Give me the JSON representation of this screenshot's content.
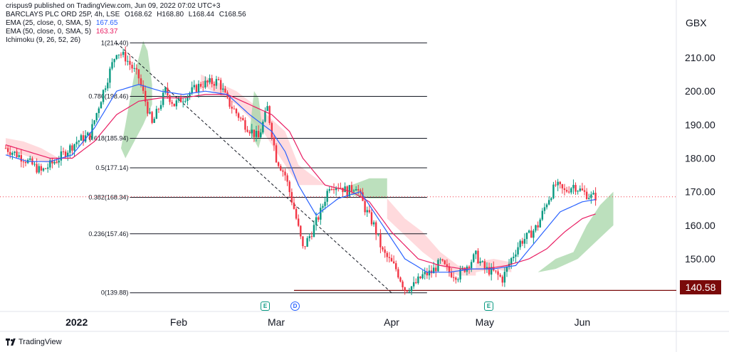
{
  "header": {
    "published": "crispus9 published on TradingView.com, Jun 09, 2022 07:02 UTC+3",
    "symbol_line": "BARCLAYS PLC ORD 25P, 4h, LSE",
    "ohlc": {
      "o": "O168.62",
      "h": "H168.80",
      "l": "L168.44",
      "c": "C168.56"
    },
    "indicators": [
      {
        "label": "EMA (25, close, 0, SMA, 5)",
        "value": "167.65",
        "color": "#2962ff"
      },
      {
        "label": "EMA (50, close, 0, SMA, 5)",
        "value": "163.37",
        "color": "#e91e63"
      },
      {
        "label": "Ichimoku (9, 26, 52, 26)",
        "value": "",
        "color": "#131722"
      }
    ]
  },
  "unit": "GBX",
  "current_price_label": "140.58",
  "footer_brand": "TradingView",
  "events": [
    {
      "letter": "E",
      "kind": "earnings"
    },
    {
      "letter": "D",
      "kind": "dividend"
    },
    {
      "letter": "E",
      "kind": "earnings"
    }
  ],
  "colors": {
    "up": "#089981",
    "down": "#f23645",
    "ema25": "#2962ff",
    "ema50": "#e91e63",
    "cloud_up": "#a5d6a7",
    "cloud_down": "#ffcdd2",
    "fib": "#131722",
    "price_marker": "#7a0a0a"
  },
  "chart_data": {
    "type": "candlestick",
    "timeframe": "4h",
    "ylim": [
      136,
      224
    ],
    "y_ticks": [
      150,
      160,
      170,
      180,
      190,
      200,
      210
    ],
    "x_ticks": [
      {
        "label": "2022",
        "index": 16
      },
      {
        "label": "Feb",
        "index": 39
      },
      {
        "label": "Mar",
        "index": 61
      },
      {
        "label": "Apr",
        "index": 87
      },
      {
        "label": "May",
        "index": 108
      },
      {
        "label": "Jun",
        "index": 130
      }
    ],
    "bars": 146,
    "fib_levels": [
      {
        "label": "1(214.40)",
        "value": 214.4
      },
      {
        "label": "0.786(198.46)",
        "value": 198.46
      },
      {
        "label": "0.618(185.94)",
        "value": 185.94
      },
      {
        "label": "0.5(177.14)",
        "value": 177.14
      },
      {
        "label": "0.382(168.34)",
        "value": 168.34
      },
      {
        "label": "0.236(157.46)",
        "value": 157.46
      },
      {
        "label": "0(139.88)",
        "value": 139.88
      }
    ],
    "current_price_line": 168.5,
    "support_line": 140.58,
    "close_path": [
      [
        0,
        183
      ],
      [
        4,
        180
      ],
      [
        8,
        176
      ],
      [
        12,
        180
      ],
      [
        16,
        185
      ],
      [
        19,
        187
      ],
      [
        22,
        200
      ],
      [
        25,
        212
      ],
      [
        27,
        210
      ],
      [
        30,
        204
      ],
      [
        33,
        190
      ],
      [
        36,
        200
      ],
      [
        38,
        196
      ],
      [
        41,
        199
      ],
      [
        44,
        202
      ],
      [
        48,
        203
      ],
      [
        50,
        197
      ],
      [
        54,
        190
      ],
      [
        57,
        186
      ],
      [
        59,
        195
      ],
      [
        61,
        180
      ],
      [
        63,
        175
      ],
      [
        65,
        165
      ],
      [
        67,
        153
      ],
      [
        69,
        158
      ],
      [
        71,
        164
      ],
      [
        73,
        172
      ],
      [
        75,
        172
      ],
      [
        77,
        170
      ],
      [
        79,
        172
      ],
      [
        81,
        165
      ],
      [
        83,
        160
      ],
      [
        85,
        152
      ],
      [
        88,
        147
      ],
      [
        90,
        141
      ],
      [
        92,
        142
      ],
      [
        94,
        145
      ],
      [
        96,
        146
      ],
      [
        98,
        149
      ],
      [
        100,
        146
      ],
      [
        102,
        145
      ],
      [
        104,
        148
      ],
      [
        106,
        151
      ],
      [
        108,
        147
      ],
      [
        110,
        146
      ],
      [
        112,
        144
      ],
      [
        114,
        150
      ],
      [
        116,
        155
      ],
      [
        118,
        157
      ],
      [
        120,
        160
      ],
      [
        122,
        167
      ],
      [
        124,
        172
      ],
      [
        126,
        170
      ],
      [
        128,
        172
      ],
      [
        130,
        170
      ],
      [
        132,
        168.5
      ],
      [
        133,
        168.6
      ]
    ],
    "ema25_path": [
      [
        0,
        181
      ],
      [
        5,
        179
      ],
      [
        10,
        179
      ],
      [
        15,
        181
      ],
      [
        20,
        189
      ],
      [
        25,
        200
      ],
      [
        30,
        202
      ],
      [
        35,
        200
      ],
      [
        40,
        199
      ],
      [
        45,
        200
      ],
      [
        50,
        199
      ],
      [
        55,
        193
      ],
      [
        60,
        188
      ],
      [
        63,
        182
      ],
      [
        66,
        172
      ],
      [
        70,
        163
      ],
      [
        75,
        168
      ],
      [
        80,
        170
      ],
      [
        85,
        160
      ],
      [
        90,
        150
      ],
      [
        95,
        146
      ],
      [
        100,
        146
      ],
      [
        105,
        147
      ],
      [
        110,
        147
      ],
      [
        115,
        148
      ],
      [
        120,
        156
      ],
      [
        125,
        164
      ],
      [
        130,
        167
      ],
      [
        133,
        167.7
      ]
    ],
    "ema50_path": [
      [
        0,
        184
      ],
      [
        5,
        182
      ],
      [
        10,
        180
      ],
      [
        15,
        180
      ],
      [
        20,
        185
      ],
      [
        25,
        193
      ],
      [
        30,
        197
      ],
      [
        35,
        198
      ],
      [
        40,
        198
      ],
      [
        45,
        199
      ],
      [
        50,
        199
      ],
      [
        55,
        196
      ],
      [
        60,
        193
      ],
      [
        64,
        188
      ],
      [
        67,
        180
      ],
      [
        72,
        172
      ],
      [
        78,
        170
      ],
      [
        82,
        167
      ],
      [
        87,
        158
      ],
      [
        93,
        150
      ],
      [
        98,
        148
      ],
      [
        103,
        147
      ],
      [
        108,
        147
      ],
      [
        113,
        148
      ],
      [
        118,
        150
      ],
      [
        122,
        153
      ],
      [
        126,
        158
      ],
      [
        130,
        162
      ],
      [
        133,
        163.4
      ]
    ],
    "cloud_up_segments": [
      [
        [
          26,
          183
        ],
        [
          27,
          190
        ],
        [
          29,
          205
        ],
        [
          31,
          215
        ],
        [
          32,
          212
        ],
        [
          33,
          202
        ],
        [
          33,
          196
        ],
        [
          31,
          190
        ],
        [
          29,
          185
        ],
        [
          27,
          180
        ]
      ],
      [
        [
          55,
          188
        ],
        [
          56,
          200
        ],
        [
          57,
          198
        ],
        [
          58,
          188
        ],
        [
          57,
          183
        ]
      ],
      [
        [
          78,
          172
        ],
        [
          82,
          174
        ],
        [
          86,
          174
        ],
        [
          86,
          168
        ],
        [
          82,
          168
        ],
        [
          78,
          169
        ]
      ],
      [
        [
          120,
          146
        ],
        [
          124,
          150
        ],
        [
          128,
          152
        ],
        [
          131,
          160
        ],
        [
          134,
          166
        ],
        [
          137,
          170
        ],
        [
          137,
          160
        ],
        [
          133,
          155
        ],
        [
          129,
          150
        ],
        [
          124,
          147
        ]
      ]
    ],
    "cloud_down_segments": [
      [
        [
          0,
          186
        ],
        [
          4,
          185
        ],
        [
          8,
          183
        ],
        [
          12,
          180
        ],
        [
          12,
          178
        ],
        [
          8,
          179
        ],
        [
          4,
          181
        ],
        [
          0,
          183
        ]
      ],
      [
        [
          44,
          205
        ],
        [
          52,
          200
        ],
        [
          58,
          194
        ],
        [
          63,
          188
        ],
        [
          66,
          178
        ],
        [
          68,
          176
        ],
        [
          72,
          172
        ],
        [
          66,
          172
        ],
        [
          62,
          180
        ],
        [
          58,
          188
        ],
        [
          52,
          196
        ],
        [
          44,
          202
        ]
      ],
      [
        [
          86,
          168
        ],
        [
          90,
          162
        ],
        [
          94,
          158
        ],
        [
          98,
          152
        ],
        [
          102,
          148
        ],
        [
          106,
          147
        ],
        [
          106,
          145
        ],
        [
          102,
          145
        ],
        [
          98,
          148
        ],
        [
          94,
          152
        ],
        [
          90,
          157
        ],
        [
          86,
          162
        ]
      ],
      [
        [
          106,
          149
        ],
        [
          110,
          150
        ],
        [
          114,
          149
        ],
        [
          114,
          146
        ],
        [
          110,
          147
        ],
        [
          106,
          146
        ]
      ]
    ],
    "trend_line": {
      "from": [
        25,
        214.4
      ],
      "to": [
        87,
        139.88
      ]
    },
    "event_index": [
      56,
      59,
      98
    ]
  }
}
